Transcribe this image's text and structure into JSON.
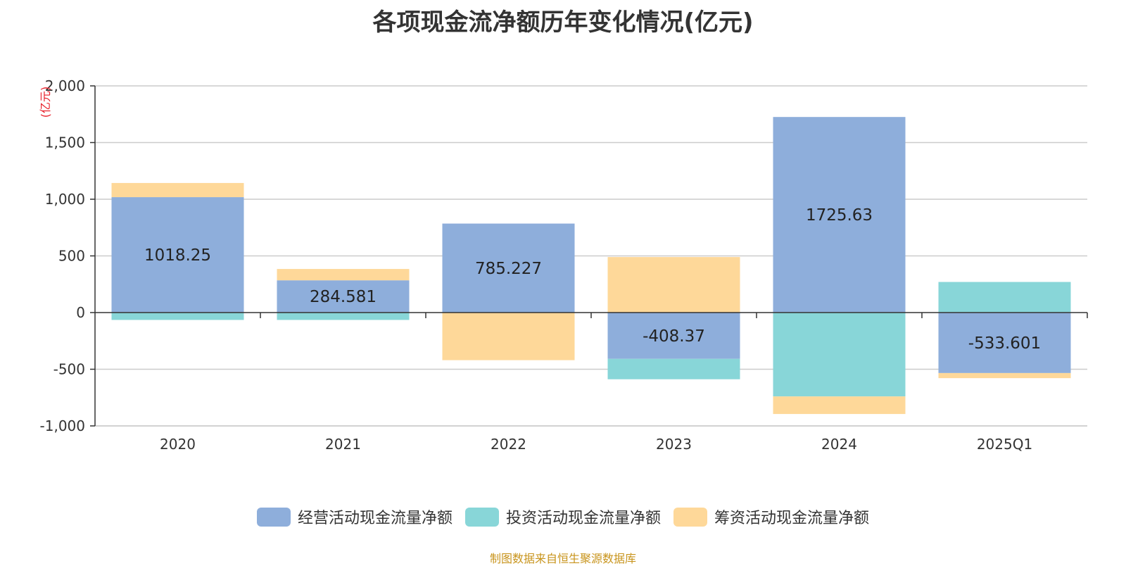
{
  "chart_data": {
    "type": "bar",
    "stacked": true,
    "title": "各项现金流净额历年变化情况(亿元)",
    "y_unit": "(亿元)",
    "categories": [
      "2020",
      "2021",
      "2022",
      "2023",
      "2024",
      "2025Q1"
    ],
    "ylim": [
      -1000,
      2000
    ],
    "yticks": [
      2000,
      1500,
      1000,
      500,
      0,
      -500,
      -1000
    ],
    "ytick_labels": [
      "2,000",
      "1,500",
      "1,000",
      "500",
      "0",
      "-500",
      "-1,000"
    ],
    "grid": true,
    "legend_position": "bottom",
    "series": [
      {
        "name": "经营活动现金流量净额",
        "color": "#8eaedb",
        "values": [
          1018.25,
          284.581,
          785.227,
          -408.37,
          1725.63,
          -533.601
        ],
        "labels": [
          "1018.25",
          "284.581",
          "785.227",
          "-408.37",
          "1725.63",
          "-533.601"
        ]
      },
      {
        "name": "投资活动现金流量净额",
        "color": "#88d6d8",
        "values": [
          -65,
          -65,
          0,
          -180,
          -740,
          270
        ]
      },
      {
        "name": "筹资活动现金流量净额",
        "color": "#fed899",
        "values": [
          125,
          100,
          -420,
          490,
          -155,
          -45
        ]
      }
    ]
  },
  "source": "制图数据来自恒生聚源数据库"
}
